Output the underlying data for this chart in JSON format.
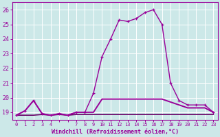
{
  "xlabel": "Windchill (Refroidissement éolien,°C)",
  "bg_color": "#cce8e8",
  "grid_color": "#aacccc",
  "line_color": "#990099",
  "flat_color": "#660066",
  "x_hours": [
    0,
    1,
    2,
    3,
    4,
    5,
    6,
    7,
    8,
    9,
    10,
    11,
    12,
    13,
    14,
    15,
    16,
    17,
    18,
    19,
    20,
    21,
    22,
    23
  ],
  "temp_line": [
    18.8,
    19.1,
    19.8,
    18.9,
    18.8,
    18.9,
    18.8,
    19.0,
    19.0,
    20.3,
    22.8,
    24.0,
    25.3,
    25.2,
    25.4,
    25.8,
    26.0,
    25.0,
    21.0,
    19.8,
    19.5,
    19.5,
    19.5,
    19.0
  ],
  "windchill_line": [
    18.8,
    19.1,
    19.8,
    18.9,
    18.8,
    18.9,
    18.8,
    19.0,
    19.0,
    19.0,
    19.9,
    19.9,
    19.9,
    19.9,
    19.9,
    19.9,
    19.9,
    19.9,
    19.7,
    19.5,
    19.3,
    19.3,
    19.3,
    19.0
  ],
  "flat_line": [
    18.8,
    18.8,
    18.8,
    18.85,
    18.8,
    18.85,
    18.8,
    18.85,
    18.85,
    18.85,
    18.85,
    18.85,
    18.85,
    18.85,
    18.85,
    18.85,
    18.85,
    18.85,
    18.85,
    18.85,
    18.85,
    18.85,
    18.85,
    18.85
  ],
  "ylim": [
    18.5,
    26.5
  ],
  "yticks": [
    19,
    20,
    21,
    22,
    23,
    24,
    25,
    26
  ],
  "xtick_labels": [
    "0",
    "1",
    "2",
    "3",
    "4",
    "",
    "",
    "7",
    "8",
    "9",
    "10",
    "11",
    "12",
    "13",
    "14",
    "15",
    "16",
    "17",
    "18",
    "19",
    "20",
    "21",
    "22",
    "23"
  ],
  "xlabel_fontsize": 6,
  "ytick_fontsize": 6,
  "xtick_fontsize": 5
}
